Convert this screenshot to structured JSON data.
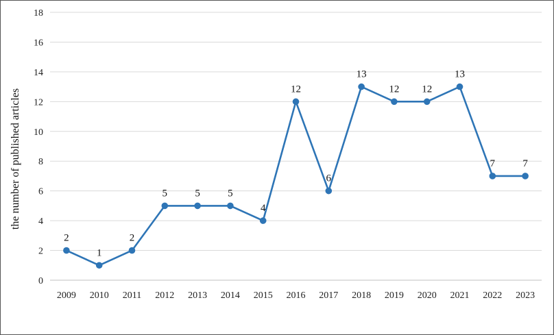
{
  "chart_data": {
    "type": "line",
    "title": "",
    "xlabel": "",
    "ylabel": "the number of published articles",
    "categories": [
      "2009",
      "2010",
      "2011",
      "2012",
      "2013",
      "2014",
      "2015",
      "2016",
      "2017",
      "2018",
      "2019",
      "2020",
      "2021",
      "2022",
      "2023"
    ],
    "series": [
      {
        "values": [
          2,
          1,
          2,
          5,
          5,
          5,
          4,
          12,
          6,
          13,
          12,
          12,
          13,
          7,
          7
        ],
        "color": "#2e75b6"
      }
    ],
    "ylim": [
      0,
      18
    ],
    "yticks": [
      0,
      2,
      4,
      6,
      8,
      10,
      12,
      14,
      16,
      18
    ],
    "grid": true,
    "gridColor": "#d9d9d9",
    "data_labels": true,
    "legend": "none"
  }
}
